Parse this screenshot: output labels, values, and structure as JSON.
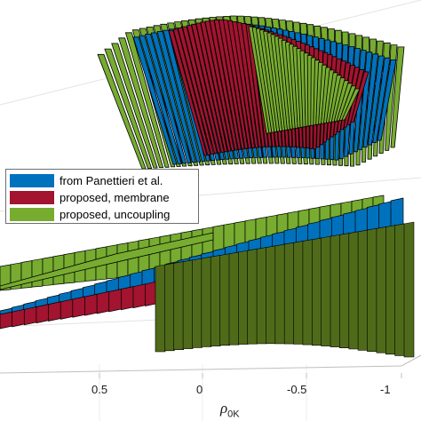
{
  "chart_data": {
    "type": "surface",
    "series": [
      {
        "name": "from Panettieri et al.",
        "color": "#0072bd"
      },
      {
        "name": "proposed, membrane",
        "color": "#a2142f"
      },
      {
        "name": "proposed, uncoupling",
        "color": "#77ac30"
      }
    ],
    "x_tick_labels": [
      "0.5",
      "0",
      "-0.5",
      "-1"
    ],
    "x_ticks": [
      0.5,
      0,
      -0.5,
      -1
    ],
    "xlim": [
      -1,
      1
    ],
    "x_direction": "reversed",
    "xlabel_symbol": "ρ",
    "xlabel_subscript": "0K",
    "grid": "on",
    "legend_placement": "center-left",
    "edge_color": "#000000",
    "axis_color": "#bfbfbf"
  }
}
